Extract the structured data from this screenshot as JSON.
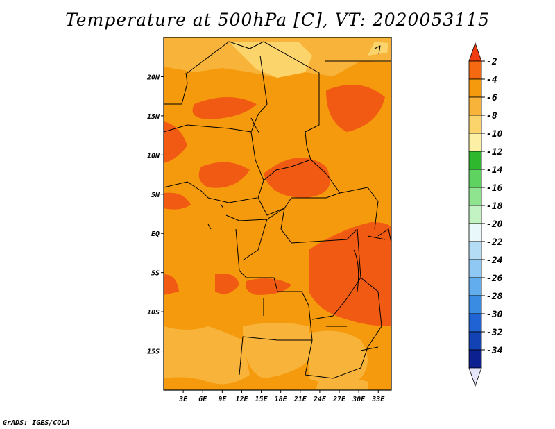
{
  "title": "Temperature at 500hPa [C], VT: 2020053115",
  "credit": "GrADS: IGES/COLA",
  "map": {
    "lon_range": [
      0,
      35
    ],
    "lat_range": [
      -20,
      25
    ],
    "x_ticks": [
      "3E",
      "6E",
      "9E",
      "12E",
      "15E",
      "18E",
      "21E",
      "24E",
      "27E",
      "30E",
      "33E"
    ],
    "x_tick_values": [
      3,
      6,
      9,
      12,
      15,
      18,
      21,
      24,
      27,
      30,
      33
    ],
    "y_ticks": [
      "20N",
      "15N",
      "10N",
      "5N",
      "EQ",
      "5S",
      "10S",
      "15S"
    ],
    "y_tick_values": [
      20,
      15,
      10,
      5,
      0,
      -5,
      -10,
      -15
    ],
    "colors": {
      "c_m4_m2": "#f05a12",
      "c_m6_m4": "#f59a0c",
      "c_m8_m6": "#f8b43a",
      "c_m10_m8": "#fbd56c",
      "c_m12_m10": "#fdefa4",
      "border": "#000000"
    }
  },
  "colorbar": {
    "labels": [
      "-2",
      "-4",
      "-6",
      "-8",
      "-10",
      "-12",
      "-14",
      "-16",
      "-18",
      "-20",
      "-22",
      "-24",
      "-26",
      "-28",
      "-30",
      "-32",
      "-34"
    ],
    "colors": [
      "#f03c10",
      "#f56a10",
      "#f59a0c",
      "#f8b43a",
      "#fbd56c",
      "#fdefa4",
      "#2eb82e",
      "#5fd35f",
      "#8fe48f",
      "#c3f2c3",
      "#e8f8fb",
      "#b4dcf5",
      "#8fc8f2",
      "#62adee",
      "#3a8be2",
      "#1f63d4",
      "#1242b4",
      "#0c2090",
      "#e6e6fa"
    ]
  }
}
